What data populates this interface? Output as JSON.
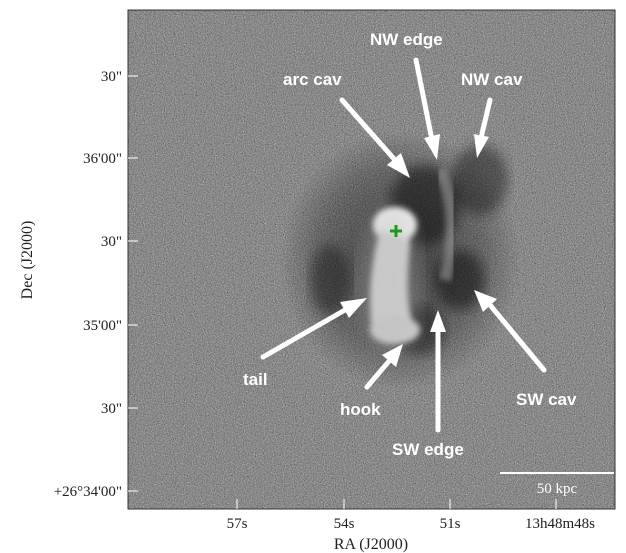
{
  "axes": {
    "xlabel": "RA (J2000)",
    "ylabel": "Dec (J2000)",
    "x_ticks": [
      "57s",
      "54s",
      "51s",
      "13h48m48s"
    ],
    "y_ticks": [
      "30\"",
      "36'00\"",
      "30\"",
      "35'00\"",
      "30\"",
      "+26°34'00\""
    ]
  },
  "annotations": {
    "nw_edge": "NW edge",
    "arc_cav": "arc cav",
    "nw_cav": "NW cav",
    "tail": "tail",
    "hook": "hook",
    "sw_edge": "SW edge",
    "sw_cav": "SW cav"
  },
  "scale_bar": {
    "label": "50 kpc"
  },
  "colors": {
    "background_gray": "#6e6e6e",
    "arrow": "#ffffff",
    "marker": "#1a9a1a"
  }
}
